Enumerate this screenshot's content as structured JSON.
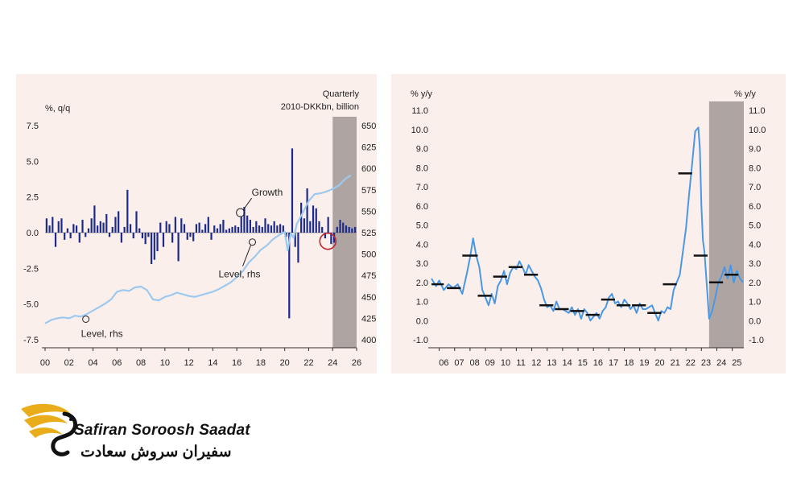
{
  "chart_data": [
    {
      "type": "bar",
      "left_unit": "%, q/q",
      "right_unit_line1": "Quarterly",
      "right_unit_line2": "2010-DKKbn, billion",
      "x_tick_labels": [
        "00",
        "02",
        "04",
        "06",
        "08",
        "10",
        "12",
        "14",
        "16",
        "18",
        "20",
        "22",
        "24",
        "26"
      ],
      "x_range": [
        2000,
        2026
      ],
      "ylim_left": [
        -7.5,
        7.5
      ],
      "left_ticks": [
        "7.5",
        "5.0",
        "2.5",
        "0.0",
        "-2.5",
        "-5.0",
        "-7.5"
      ],
      "ylim_right": [
        400,
        650
      ],
      "right_ticks": [
        "650",
        "625",
        "600",
        "575",
        "550",
        "525",
        "500",
        "475",
        "450",
        "425",
        "400"
      ],
      "shaded_from": 2024,
      "growth_color": "#1c2a8c",
      "level_color": "#9ec9ee",
      "annotations": [
        {
          "text": "Growth",
          "x": 2016.3,
          "y_left": 1.4
        },
        {
          "text": "Level, rhs",
          "x": 2017.3,
          "y_right": 514
        },
        {
          "text": "Level, rhs",
          "x": 2003.4,
          "y_right": 424
        }
      ],
      "series": [
        {
          "name": "Growth",
          "type": "bar",
          "x": [
            2000.0,
            2000.25,
            2000.5,
            2000.75,
            2001.0,
            2001.25,
            2001.5,
            2001.75,
            2002.0,
            2002.25,
            2002.5,
            2002.75,
            2003.0,
            2003.25,
            2003.5,
            2003.75,
            2004.0,
            2004.25,
            2004.5,
            2004.75,
            2005.0,
            2005.25,
            2005.5,
            2005.75,
            2006.0,
            2006.25,
            2006.5,
            2006.75,
            2007.0,
            2007.25,
            2007.5,
            2007.75,
            2008.0,
            2008.25,
            2008.5,
            2008.75,
            2009.0,
            2009.25,
            2009.5,
            2009.75,
            2010.0,
            2010.25,
            2010.5,
            2010.75,
            2011.0,
            2011.25,
            2011.5,
            2011.75,
            2012.0,
            2012.25,
            2012.5,
            2012.75,
            2013.0,
            2013.25,
            2013.5,
            2013.75,
            2014.0,
            2014.25,
            2014.5,
            2014.75,
            2015.0,
            2015.25,
            2015.5,
            2015.75,
            2016.0,
            2016.25,
            2016.5,
            2016.75,
            2017.0,
            2017.25,
            2017.5,
            2017.75,
            2018.0,
            2018.25,
            2018.5,
            2018.75,
            2019.0,
            2019.25,
            2019.5,
            2019.75,
            2020.0,
            2020.25,
            2020.5,
            2020.75,
            2021.0,
            2021.25,
            2021.5,
            2021.75,
            2022.0,
            2022.25,
            2022.5,
            2022.75,
            2023.0,
            2023.25,
            2023.5,
            2023.75,
            2024.0,
            2024.25,
            2024.5,
            2024.75,
            2025.0,
            2025.25,
            2025.5,
            2025.75
          ],
          "values": [
            1.0,
            0.5,
            1.1,
            -1.0,
            0.8,
            1.0,
            -0.5,
            0.3,
            -0.4,
            0.6,
            0.5,
            -0.7,
            0.9,
            -0.3,
            0.3,
            1.0,
            1.9,
            0.5,
            0.8,
            0.7,
            1.3,
            -0.3,
            0.4,
            1.1,
            1.5,
            -0.7,
            0.4,
            3.0,
            0.6,
            -0.4,
            1.5,
            0.3,
            -0.4,
            -0.8,
            -0.3,
            -2.2,
            -1.9,
            -1.3,
            0.7,
            -1.0,
            0.8,
            0.6,
            -0.7,
            1.1,
            -2.0,
            1.0,
            0.6,
            -0.5,
            -0.3,
            -0.6,
            0.6,
            0.7,
            0.2,
            0.6,
            1.1,
            -0.5,
            0.5,
            0.3,
            0.6,
            0.9,
            0.2,
            0.3,
            0.4,
            0.5,
            0.4,
            1.1,
            1.8,
            1.2,
            0.9,
            0.4,
            0.8,
            0.5,
            0.4,
            1.0,
            0.6,
            0.5,
            0.8,
            0.5,
            0.6,
            0.5,
            -0.3,
            -6.0,
            5.9,
            -1.0,
            -2.1,
            2.1,
            1.0,
            3.1,
            0.8,
            1.9,
            1.7,
            0.8,
            0.4,
            -0.4,
            1.1,
            -0.8,
            -0.7,
            0.4,
            0.9,
            0.7,
            0.5,
            0.4,
            0.3,
            0.4
          ]
        },
        {
          "name": "Level, rhs",
          "type": "line",
          "x": [
            2000.0,
            2000.5,
            2001.0,
            2001.5,
            2002.0,
            2002.5,
            2003.0,
            2003.5,
            2004.0,
            2004.5,
            2005.0,
            2005.5,
            2006.0,
            2006.5,
            2007.0,
            2007.5,
            2008.0,
            2008.5,
            2009.0,
            2009.5,
            2010.0,
            2010.5,
            2011.0,
            2011.5,
            2012.0,
            2012.5,
            2013.0,
            2013.5,
            2014.0,
            2014.5,
            2015.0,
            2015.5,
            2016.0,
            2016.5,
            2017.0,
            2017.5,
            2018.0,
            2018.5,
            2019.0,
            2019.5,
            2020.0,
            2020.25,
            2020.5,
            2020.75,
            2021.0,
            2021.5,
            2022.0,
            2022.5,
            2023.0,
            2023.5,
            2024.0,
            2024.5,
            2025.0,
            2025.5
          ],
          "values": [
            419,
            423,
            425,
            426,
            425,
            428,
            427,
            430,
            434,
            438,
            442,
            447,
            456,
            458,
            457,
            461,
            462,
            458,
            447,
            446,
            450,
            452,
            455,
            453,
            451,
            450,
            452,
            454,
            456,
            459,
            463,
            467,
            473,
            480,
            490,
            497,
            505,
            510,
            517,
            522,
            526,
            504,
            524,
            519,
            535,
            548,
            562,
            570,
            571,
            573,
            576,
            580,
            587,
            592
          ]
        }
      ]
    },
    {
      "type": "line",
      "left_unit": "% y/y",
      "right_unit": "% y/y",
      "x_tick_labels": [
        "06",
        "07",
        "08",
        "09",
        "10",
        "11",
        "12",
        "13",
        "14",
        "15",
        "16",
        "17",
        "18",
        "19",
        "20",
        "21",
        "22",
        "23",
        "24",
        "25"
      ],
      "x_range": [
        2005.5,
        2025.75
      ],
      "ylim": [
        -1.0,
        11.0
      ],
      "y_ticks": [
        "11.0",
        "10.0",
        "9.0",
        "8.0",
        "7.0",
        "6.0",
        "5.0",
        "4.0",
        "3.0",
        "2.0",
        "1.0",
        "0.0",
        "-1.0"
      ],
      "shaded_from": 2023.5,
      "line_color": "#4a98e4",
      "series": [
        {
          "name": "",
          "type": "line",
          "x": [
            2005.5,
            2005.8,
            2006.0,
            2006.3,
            2006.6,
            2006.9,
            2007.2,
            2007.5,
            2007.8,
            2008.0,
            2008.2,
            2008.4,
            2008.6,
            2008.8,
            2009.0,
            2009.2,
            2009.4,
            2009.6,
            2009.8,
            2010.0,
            2010.2,
            2010.4,
            2010.6,
            2010.8,
            2011.0,
            2011.2,
            2011.4,
            2011.6,
            2011.8,
            2012.0,
            2012.2,
            2012.4,
            2012.6,
            2012.8,
            2013.0,
            2013.2,
            2013.4,
            2013.6,
            2013.8,
            2014.0,
            2014.2,
            2014.4,
            2014.6,
            2014.8,
            2015.0,
            2015.2,
            2015.4,
            2015.6,
            2015.8,
            2016.0,
            2016.2,
            2016.4,
            2016.6,
            2016.8,
            2017.0,
            2017.2,
            2017.4,
            2017.6,
            2017.8,
            2018.0,
            2018.2,
            2018.4,
            2018.6,
            2018.8,
            2019.0,
            2019.2,
            2019.4,
            2019.6,
            2019.8,
            2020.0,
            2020.2,
            2020.4,
            2020.6,
            2020.8,
            2021.0,
            2021.2,
            2021.4,
            2021.6,
            2021.8,
            2022.0,
            2022.2,
            2022.4,
            2022.6,
            2022.8,
            2022.9,
            2023.0,
            2023.1,
            2023.2,
            2023.3,
            2023.5,
            2023.7,
            2023.9,
            2024.1,
            2024.3,
            2024.5,
            2024.7,
            2024.9,
            2025.1,
            2025.3,
            2025.5,
            2025.7
          ],
          "values": [
            2.2,
            1.8,
            2.1,
            1.6,
            1.9,
            1.7,
            1.9,
            1.4,
            2.5,
            3.3,
            4.3,
            3.4,
            2.8,
            1.6,
            1.2,
            0.8,
            1.4,
            0.9,
            1.8,
            2.1,
            2.6,
            1.9,
            2.5,
            2.8,
            2.7,
            3.1,
            2.8,
            2.4,
            2.9,
            2.6,
            2.3,
            2.1,
            1.7,
            1.1,
            0.7,
            0.8,
            0.5,
            1.0,
            0.6,
            0.6,
            0.5,
            0.4,
            0.7,
            0.3,
            0.6,
            0.1,
            0.6,
            0.4,
            0.0,
            0.2,
            0.4,
            0.1,
            0.5,
            0.7,
            1.2,
            1.4,
            0.9,
            1.0,
            0.7,
            1.1,
            0.9,
            0.6,
            0.8,
            0.4,
            0.9,
            0.6,
            0.6,
            0.7,
            0.8,
            0.4,
            0.0,
            0.5,
            0.4,
            0.7,
            0.6,
            1.6,
            2.0,
            2.4,
            3.6,
            4.8,
            6.6,
            8.2,
            9.9,
            10.1,
            9.0,
            6.0,
            4.2,
            3.6,
            2.4,
            0.1,
            0.5,
            1.2,
            2.0,
            2.3,
            2.8,
            2.2,
            2.9,
            2.0,
            2.6,
            2.2,
            2.0
          ]
        }
      ],
      "averages": [
        {
          "from": 2005.5,
          "to": 2006.3,
          "value": 1.9
        },
        {
          "from": 2006.5,
          "to": 2007.4,
          "value": 1.7
        },
        {
          "from": 2007.5,
          "to": 2008.5,
          "value": 3.4
        },
        {
          "from": 2008.5,
          "to": 2009.4,
          "value": 1.3
        },
        {
          "from": 2009.5,
          "to": 2010.4,
          "value": 2.3
        },
        {
          "from": 2010.5,
          "to": 2011.4,
          "value": 2.8
        },
        {
          "from": 2011.5,
          "to": 2012.4,
          "value": 2.4
        },
        {
          "from": 2012.5,
          "to": 2013.4,
          "value": 0.8
        },
        {
          "from": 2013.5,
          "to": 2014.4,
          "value": 0.6
        },
        {
          "from": 2014.5,
          "to": 2015.4,
          "value": 0.5
        },
        {
          "from": 2015.5,
          "to": 2016.4,
          "value": 0.3
        },
        {
          "from": 2016.5,
          "to": 2017.4,
          "value": 1.1
        },
        {
          "from": 2017.5,
          "to": 2018.4,
          "value": 0.8
        },
        {
          "from": 2018.5,
          "to": 2019.4,
          "value": 0.8
        },
        {
          "from": 2019.5,
          "to": 2020.4,
          "value": 0.4
        },
        {
          "from": 2020.5,
          "to": 2021.4,
          "value": 1.9
        },
        {
          "from": 2021.5,
          "to": 2022.4,
          "value": 7.7
        },
        {
          "from": 2022.5,
          "to": 2023.4,
          "value": 3.4
        },
        {
          "from": 2023.5,
          "to": 2024.4,
          "value": 2.0
        },
        {
          "from": 2024.5,
          "to": 2025.4,
          "value": 2.4
        }
      ]
    }
  ],
  "logo": {
    "name_en": "Safiran Soroosh Saadat",
    "name_fa": "سفیران سروش سعادت",
    "colors": {
      "gold": "#e9ac1a",
      "dark": "#111111"
    }
  }
}
